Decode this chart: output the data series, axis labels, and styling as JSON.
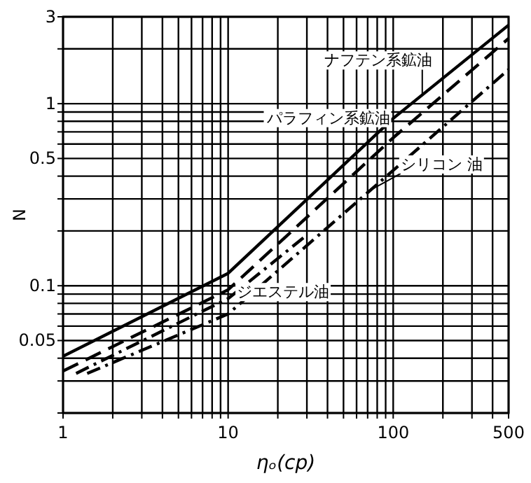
{
  "chart_data": {
    "type": "line",
    "xlabel": "ηₒ(cp)",
    "ylabel": "N",
    "log": "xy",
    "grid": true,
    "xlim": [
      1,
      500
    ],
    "ylim": [
      0.02,
      3
    ],
    "xticks": [
      1,
      {
        "value": 2,
        "label": null
      },
      {
        "value": 3,
        "label": null
      },
      {
        "value": 4,
        "label": null
      },
      {
        "value": 5,
        "label": null
      },
      {
        "value": 6,
        "label": null
      },
      {
        "value": 7,
        "label": null
      },
      {
        "value": 8,
        "label": null
      },
      {
        "value": 9,
        "label": null
      },
      10,
      {
        "value": 20,
        "label": null
      },
      {
        "value": 30,
        "label": null
      },
      {
        "value": 40,
        "label": null
      },
      {
        "value": 50,
        "label": null
      },
      {
        "value": 60,
        "label": null
      },
      {
        "value": 70,
        "label": null
      },
      {
        "value": 80,
        "label": null
      },
      {
        "value": 90,
        "label": null
      },
      100,
      {
        "value": 200,
        "label": null
      },
      {
        "value": 300,
        "label": null
      },
      {
        "value": 400,
        "label": null
      },
      500
    ],
    "yticks": [
      {
        "value": 0.02,
        "label": null
      },
      {
        "value": 0.03,
        "label": null
      },
      {
        "value": 0.04,
        "label": null
      },
      0.05,
      {
        "value": 0.06,
        "label": null
      },
      {
        "value": 0.07,
        "label": null
      },
      {
        "value": 0.08,
        "label": null
      },
      {
        "value": 0.09,
        "label": null
      },
      0.1,
      {
        "value": 0.2,
        "label": null
      },
      {
        "value": 0.3,
        "label": null
      },
      {
        "value": 0.4,
        "label": null
      },
      0.5,
      {
        "value": 0.6,
        "label": null
      },
      {
        "value": 0.7,
        "label": null
      },
      {
        "value": 0.8,
        "label": null
      },
      {
        "value": 0.9,
        "label": null
      },
      1,
      {
        "value": 2,
        "label": null
      },
      3
    ],
    "series": [
      {
        "color": "#000000",
        "line_style": "solid",
        "x": [
          1,
          10,
          100,
          500
        ],
        "values": [
          0.041,
          0.117,
          0.83,
          2.7
        ]
      },
      {
        "color": "#000000",
        "line_style": "dashed",
        "x": [
          1,
          10,
          100,
          500
        ],
        "values": [
          0.034,
          0.095,
          0.65,
          2.28
        ]
      },
      {
        "color": "#000000",
        "line_style": "dotted",
        "x": [
          1.2,
          10,
          30
        ],
        "values": [
          0.033,
          0.085,
          0.19
        ]
      },
      {
        "color": "#000000",
        "line_style": "dotted",
        "x": [
          1.4,
          10,
          100,
          500
        ],
        "values": [
          0.033,
          0.07,
          0.43,
          1.54
        ]
      }
    ],
    "annotations": [
      {
        "text": "ナフテン系鉱油",
        "x": 150,
        "y": 1.1
      },
      {
        "text": "パラフィン系鉱油",
        "x": 90,
        "y": 0.59
      },
      {
        "text": "ジエステル油",
        "x": 30,
        "y": 0.17
      },
      {
        "text": "シリコン 油",
        "x": 75,
        "y": 0.34
      }
    ]
  }
}
